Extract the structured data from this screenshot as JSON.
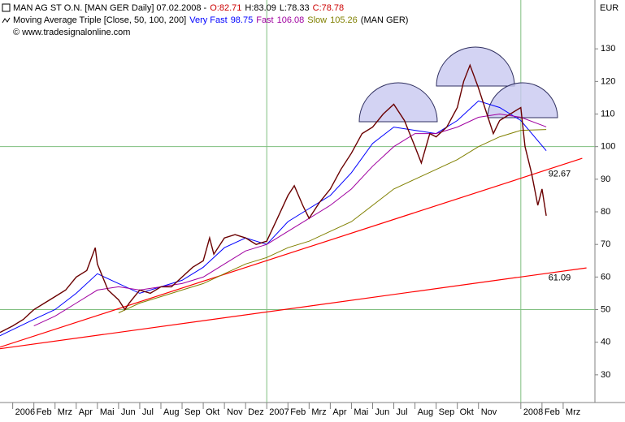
{
  "chart_data": {
    "type": "line",
    "title": "MAN AG ST O.N. [MAN GER  Daily] 07.02.2008 -",
    "ohlc": [
      {
        "label": "O:",
        "value": 82.71,
        "color": "#cc0000"
      },
      {
        "label": "H:",
        "value": 83.09,
        "color": "#000000"
      },
      {
        "label": "L:",
        "value": 78.33,
        "color": "#000000"
      },
      {
        "label": "C:",
        "value": 78.78,
        "color": "#cc0000"
      }
    ],
    "indicator_title": "Moving Average Triple [Close, 50, 100, 200]",
    "indicator_suffix": "(MAN GER)",
    "source": "© www.tradesignalonline.com",
    "y_unit": "EUR",
    "xlim": [
      -0.6,
      27.5
    ],
    "ylim": [
      21.5,
      140.5
    ],
    "yticks": [
      30,
      40,
      50,
      60,
      70,
      80,
      90,
      100,
      110,
      120,
      130
    ],
    "xticks": [
      {
        "value": 0,
        "label": "2006"
      },
      {
        "value": 1,
        "label": "Feb"
      },
      {
        "value": 2,
        "label": "Mrz"
      },
      {
        "value": 3,
        "label": "Apr"
      },
      {
        "value": 4,
        "label": "Mai"
      },
      {
        "value": 5,
        "label": "Jun"
      },
      {
        "value": 6,
        "label": "Jul"
      },
      {
        "value": 7,
        "label": "Aug"
      },
      {
        "value": 8,
        "label": "Sep"
      },
      {
        "value": 9,
        "label": "Okt"
      },
      {
        "value": 10,
        "label": "Nov"
      },
      {
        "value": 11,
        "label": "Dez"
      },
      {
        "value": 12,
        "label": "2007"
      },
      {
        "value": 13,
        "label": "Feb"
      },
      {
        "value": 14,
        "label": "Mrz"
      },
      {
        "value": 15,
        "label": "Apr"
      },
      {
        "value": 16,
        "label": "Mai"
      },
      {
        "value": 17,
        "label": "Jun"
      },
      {
        "value": 18,
        "label": "Jul"
      },
      {
        "value": 19,
        "label": "Aug"
      },
      {
        "value": 20,
        "label": "Sep"
      },
      {
        "value": 21,
        "label": "Okt"
      },
      {
        "value": 22,
        "label": "Nov"
      },
      {
        "value": 24,
        "label": "2008"
      },
      {
        "value": 25,
        "label": "Feb"
      },
      {
        "value": 26,
        "label": "Mrz"
      }
    ],
    "grid_y": [
      50,
      100
    ],
    "grid_x": [
      12,
      24
    ],
    "grid_color": "#7fbf7f",
    "price": {
      "color": "#6a0000",
      "x": [
        -0.6,
        0,
        0.5,
        1,
        1.5,
        2,
        2.5,
        3,
        3.5,
        3.9,
        4,
        4.5,
        5,
        5.3,
        5.5,
        6,
        6.5,
        7,
        7.5,
        8,
        8.5,
        9,
        9.3,
        9.5,
        10,
        10.5,
        11,
        11.5,
        12,
        12.5,
        13,
        13.3,
        13.7,
        14,
        14.5,
        15,
        15.5,
        16,
        16.5,
        17,
        17.5,
        18,
        18.5,
        19,
        19.3,
        19.7,
        20,
        20.5,
        21,
        21.3,
        21.6,
        22,
        22.4,
        22.7,
        23,
        23.5,
        24,
        24.2,
        24.5,
        24.8,
        25,
        25.2
      ],
      "values": [
        43,
        45,
        47,
        50,
        52,
        54,
        56,
        60,
        62,
        69,
        64,
        56,
        53,
        50,
        52,
        56,
        55,
        57,
        57,
        60,
        63,
        65,
        72,
        67,
        72,
        73,
        72,
        70,
        71,
        78,
        85,
        88,
        82,
        78,
        83,
        87,
        93,
        98,
        104,
        106,
        110,
        113,
        108,
        100,
        95,
        104,
        103,
        106,
        112,
        120,
        125,
        118,
        110,
        104,
        108,
        110,
        112,
        100,
        92,
        82,
        87,
        78.78
      ]
    },
    "series": [
      {
        "name": "Very Fast",
        "color": "#0000ff",
        "x": [
          -0.6,
          1,
          2,
          3,
          4,
          5,
          6,
          7,
          8,
          9,
          10,
          11,
          12,
          13,
          14,
          15,
          16,
          17,
          18,
          19,
          20,
          21,
          22,
          23,
          24,
          25.2
        ],
        "values": [
          42,
          47,
          50,
          55,
          61,
          58,
          55,
          57,
          59,
          63,
          69,
          72,
          70,
          77,
          81,
          85,
          92,
          101,
          106,
          105,
          104,
          108,
          114,
          112,
          108,
          98.75
        ]
      },
      {
        "name": "Fast",
        "color": "#a000a0",
        "x": [
          1,
          2,
          3,
          4,
          5,
          6,
          7,
          8,
          9,
          10,
          11,
          12,
          13,
          14,
          15,
          16,
          17,
          18,
          19,
          20,
          21,
          22,
          23,
          24,
          25.2
        ],
        "values": [
          45,
          48,
          52,
          56,
          57,
          56,
          57,
          58,
          60,
          64,
          68,
          70,
          74,
          78,
          82,
          87,
          94,
          100,
          104,
          104,
          106,
          109,
          110,
          109,
          106.08
        ]
      },
      {
        "name": "Slow",
        "color": "#808000",
        "x": [
          5,
          6,
          7,
          8,
          9,
          10,
          11,
          12,
          13,
          14,
          15,
          16,
          17,
          18,
          19,
          20,
          21,
          22,
          23,
          24,
          25.2
        ],
        "values": [
          49,
          52,
          54,
          56,
          58,
          61,
          64,
          66,
          69,
          71,
          74,
          77,
          82,
          87,
          90,
          93,
          96,
          100,
          103,
          105,
          105.26
        ]
      }
    ],
    "trendlines": [
      {
        "color": "#ff0000",
        "x": [
          -0.6,
          26.9
        ],
        "values": [
          38.5,
          96.4
        ],
        "label": 92.67,
        "label_x": 25.3
      },
      {
        "color": "#ff0000",
        "x": [
          -0.6,
          27.1
        ],
        "values": [
          38,
          62.8
        ],
        "label": 61.09,
        "label_x": 25.3
      }
    ]
  }
}
